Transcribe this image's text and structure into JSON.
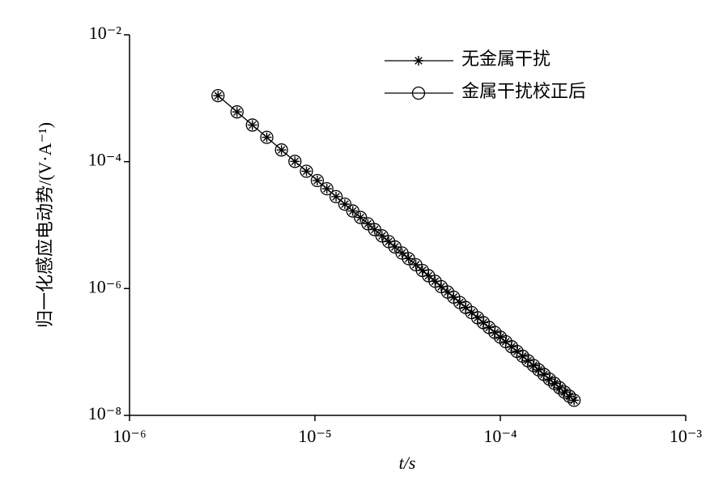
{
  "chart_data": {
    "type": "line",
    "x_label": "t/s",
    "y_label": "归一化感应电动势/(V·A⁻¹)",
    "xscale": "log",
    "yscale": "log",
    "xlim": [
      1e-06,
      0.001
    ],
    "ylim": [
      1e-08,
      0.01
    ],
    "xticks": [
      {
        "value": 1e-06,
        "label": "10⁻⁶"
      },
      {
        "value": 1e-05,
        "label": "10⁻⁵"
      },
      {
        "value": 0.0001,
        "label": "10⁻⁴"
      },
      {
        "value": 0.001,
        "label": "10⁻³"
      }
    ],
    "yticks": [
      {
        "value": 1e-08,
        "label": "10⁻⁸"
      },
      {
        "value": 1e-06,
        "label": "10⁻⁶"
      },
      {
        "value": 0.0001,
        "label": "10⁻⁴"
      },
      {
        "value": 0.01,
        "label": "10⁻²"
      }
    ],
    "legend": "upper right",
    "x": [
      3e-06,
      3.8e-06,
      4.6e-06,
      5.5e-06,
      6.6e-06,
      7.8e-06,
      9e-06,
      1.03e-05,
      1.16e-05,
      1.3e-05,
      1.45e-05,
      1.6e-05,
      1.76e-05,
      1.93e-05,
      2.1e-05,
      2.3e-05,
      2.5e-05,
      2.7e-05,
      2.95e-05,
      3.2e-05,
      3.5e-05,
      3.8e-05,
      4.1e-05,
      4.45e-05,
      4.8e-05,
      5.2e-05,
      5.6e-05,
      6.05e-05,
      6.5e-05,
      7e-05,
      7.55e-05,
      8.1e-05,
      8.7e-05,
      9.35e-05,
      0.0001,
      0.000107,
      0.000115,
      0.000123,
      0.000132,
      0.000141,
      0.000151,
      0.000161,
      0.000172,
      0.000184,
      0.000196,
      0.000209,
      0.000222,
      0.000236,
      0.00025
    ],
    "series": [
      {
        "name": "无金属干扰",
        "color": "#000000",
        "marker": "asterisk",
        "values": [
          0.0011,
          0.000609,
          0.000378,
          0.000242,
          0.000153,
          0.000101,
          7.06e-05,
          5.04e-05,
          3.74e-05,
          2.81e-05,
          2.14e-05,
          1.67e-05,
          1.32e-05,
          1.05e-05,
          8.49e-06,
          6.76e-06,
          5.49e-06,
          4.53e-06,
          3.63e-06,
          2.96e-06,
          2.37e-06,
          1.93e-06,
          1.59e-06,
          1.3e-06,
          1.07e-06,
          8.8e-07,
          7.31e-07,
          6.02e-07,
          5.03e-07,
          4.18e-07,
          3.46e-07,
          2.9e-07,
          2.43e-07,
          2.03e-07,
          1.71e-07,
          1.45e-07,
          1.21e-07,
          1.02e-07,
          8.57e-08,
          7.26e-08,
          6.12e-08,
          5.22e-08,
          4.42e-08,
          3.73e-08,
          3.19e-08,
          2.72e-08,
          2.33e-08,
          2e-08,
          1.73e-08
        ]
      },
      {
        "name": "金属干扰校正后",
        "color": "#000000",
        "marker": "circle",
        "values": [
          0.0011,
          0.000609,
          0.000378,
          0.000242,
          0.000153,
          0.000101,
          7.06e-05,
          5.04e-05,
          3.74e-05,
          2.81e-05,
          2.14e-05,
          1.67e-05,
          1.32e-05,
          1.05e-05,
          8.49e-06,
          6.76e-06,
          5.49e-06,
          4.53e-06,
          3.63e-06,
          2.96e-06,
          2.37e-06,
          1.93e-06,
          1.59e-06,
          1.3e-06,
          1.07e-06,
          8.8e-07,
          7.31e-07,
          6.02e-07,
          5.03e-07,
          4.18e-07,
          3.46e-07,
          2.9e-07,
          2.43e-07,
          2.03e-07,
          1.71e-07,
          1.45e-07,
          1.21e-07,
          1.02e-07,
          8.57e-08,
          7.26e-08,
          6.12e-08,
          5.22e-08,
          4.42e-08,
          3.73e-08,
          3.19e-08,
          2.72e-08,
          2.33e-08,
          2e-08,
          1.73e-08
        ]
      }
    ]
  }
}
